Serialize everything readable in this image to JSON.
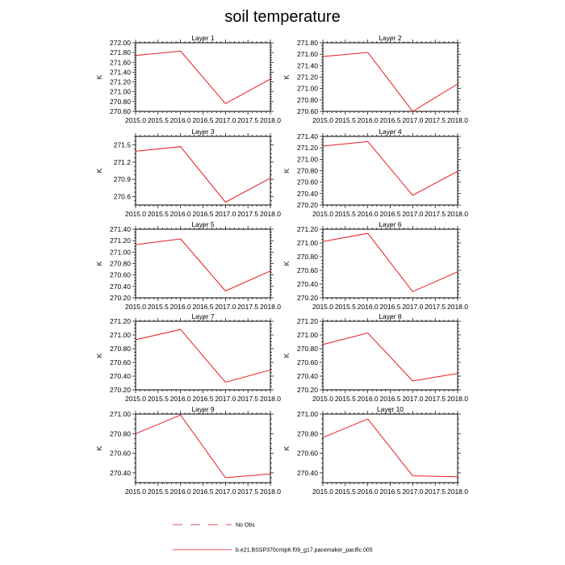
{
  "title": "soil temperature",
  "chart_data": {
    "type": "line",
    "title": "soil temperature",
    "x": [
      2015.0,
      2016.0,
      2017.0,
      2018.0
    ],
    "xlim": [
      2015.0,
      2018.0
    ],
    "xticks": [
      "2015.0",
      "2015.5",
      "2016.0",
      "2016.5",
      "2017.0",
      "2017.5",
      "2018.0"
    ],
    "panels": [
      {
        "title": "Layer 1",
        "ylabel": "K",
        "ylim": [
          270.6,
          272.0
        ],
        "yticks": [
          "270.60",
          "270.80",
          "271.00",
          "271.20",
          "271.40",
          "271.60",
          "271.80",
          "272.00"
        ],
        "values": [
          271.74,
          271.83,
          270.76,
          271.26
        ]
      },
      {
        "title": "Layer 2",
        "ylabel": "K",
        "ylim": [
          270.6,
          271.8
        ],
        "yticks": [
          "270.60",
          "270.80",
          "271.00",
          "271.20",
          "271.40",
          "271.60",
          "271.80"
        ],
        "values": [
          271.56,
          271.63,
          270.6,
          271.08
        ]
      },
      {
        "title": "Layer 3",
        "ylabel": "K",
        "ylim": [
          270.45,
          271.65
        ],
        "yticks": [
          "270.6",
          "270.9",
          "271.2",
          "271.5"
        ],
        "values": [
          271.39,
          271.47,
          270.5,
          270.92
        ]
      },
      {
        "title": "Layer 4",
        "ylabel": "K",
        "ylim": [
          270.2,
          271.4
        ],
        "yticks": [
          "270.20",
          "270.40",
          "270.60",
          "270.80",
          "271.00",
          "271.20",
          "271.40"
        ],
        "values": [
          271.23,
          271.31,
          270.37,
          270.79
        ]
      },
      {
        "title": "Layer 5",
        "ylabel": "K",
        "ylim": [
          270.2,
          271.4
        ],
        "yticks": [
          "270.20",
          "270.40",
          "270.60",
          "270.80",
          "271.00",
          "271.20",
          "271.40"
        ],
        "values": [
          271.13,
          271.23,
          270.32,
          270.67
        ]
      },
      {
        "title": "Layer 6",
        "ylabel": "K",
        "ylim": [
          270.2,
          271.2
        ],
        "yticks": [
          "270.20",
          "270.40",
          "270.60",
          "270.80",
          "271.00",
          "271.20"
        ],
        "values": [
          271.02,
          271.14,
          270.29,
          270.58
        ]
      },
      {
        "title": "Layer 7",
        "ylabel": "K",
        "ylim": [
          270.2,
          271.2
        ],
        "yticks": [
          "270.20",
          "270.40",
          "270.60",
          "270.80",
          "271.00",
          "271.20"
        ],
        "values": [
          270.93,
          271.08,
          270.31,
          270.49
        ]
      },
      {
        "title": "Layer 8",
        "ylabel": "K",
        "ylim": [
          270.2,
          271.2
        ],
        "yticks": [
          "270.20",
          "270.40",
          "270.60",
          "270.80",
          "271.00",
          "271.20"
        ],
        "values": [
          270.86,
          271.03,
          270.33,
          270.44
        ]
      },
      {
        "title": "Layer 9",
        "ylabel": "K",
        "ylim": [
          270.3,
          271.0
        ],
        "yticks": [
          "270.40",
          "270.60",
          "270.80",
          "271.00"
        ],
        "values": [
          270.8,
          270.99,
          270.35,
          270.39
        ]
      },
      {
        "title": "Layer 10",
        "ylabel": "K",
        "ylim": [
          270.3,
          271.0
        ],
        "yticks": [
          "270.40",
          "270.60",
          "270.80",
          "271.00"
        ],
        "values": [
          270.76,
          270.95,
          270.37,
          270.36
        ]
      }
    ],
    "series": [
      {
        "name": "b.e21.BSSP370cmip6.f09_g17.pacemaker_pacific.005",
        "color": "#e8191d",
        "style": "solid"
      },
      {
        "name": "No Obs",
        "color": "#d8191d",
        "style": "dashed"
      }
    ],
    "grid": false,
    "legend": "bottom-center"
  }
}
